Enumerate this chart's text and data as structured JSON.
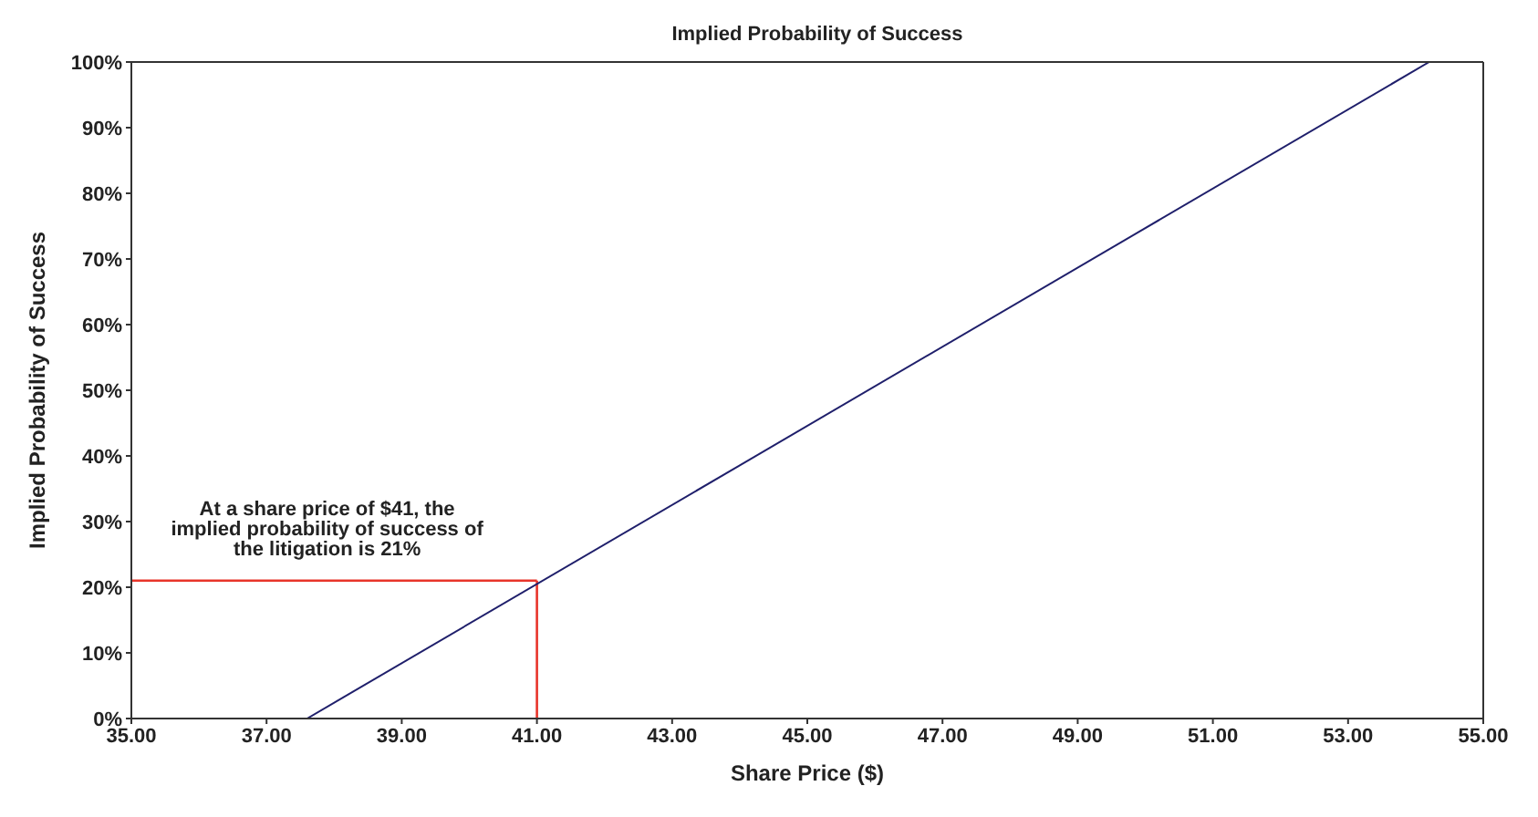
{
  "chart_data": {
    "type": "line",
    "title": "Implied Probability of Success",
    "xlabel": "Share Price ($)",
    "ylabel": "Implied Probability of Success",
    "series": [
      {
        "color": "#1f1f6b",
        "x": [
          37.6,
          54.2
        ],
        "values": [
          0,
          100
        ]
      }
    ],
    "xlim": [
      35,
      55
    ],
    "xticks": [
      {
        "value": 35,
        "label": "35.00"
      },
      {
        "value": 37,
        "label": "37.00"
      },
      {
        "value": 39,
        "label": "39.00"
      },
      {
        "value": 41,
        "label": "41.00"
      },
      {
        "value": 43,
        "label": "43.00"
      },
      {
        "value": 45,
        "label": "45.00"
      },
      {
        "value": 47,
        "label": "47.00"
      },
      {
        "value": 49,
        "label": "49.00"
      },
      {
        "value": 51,
        "label": "51.00"
      },
      {
        "value": 53,
        "label": "53.00"
      },
      {
        "value": 55,
        "label": "55.00"
      }
    ],
    "ylim": [
      0,
      100
    ],
    "yticks": [
      {
        "value": 0,
        "label": "0%"
      },
      {
        "value": 10,
        "label": "10%"
      },
      {
        "value": 20,
        "label": "20%"
      },
      {
        "value": 30,
        "label": "30%"
      },
      {
        "value": 40,
        "label": "40%"
      },
      {
        "value": 50,
        "label": "50%"
      },
      {
        "value": 60,
        "label": "60%"
      },
      {
        "value": 70,
        "label": "70%"
      },
      {
        "value": 80,
        "label": "80%"
      },
      {
        "value": 90,
        "label": "90%"
      },
      {
        "value": 100,
        "label": "100%"
      }
    ],
    "ref_lines": [
      {
        "axis": "y",
        "value": 21,
        "color": "#e8342a"
      },
      {
        "axis": "x",
        "value": 41,
        "color": "#e8342a"
      }
    ],
    "annotations": [
      {
        "text": "At a share price of $41, the implied probability of success of the litigation is 21%",
        "x": 41,
        "y": 21
      }
    ],
    "marker": "none",
    "line_style": "solid"
  }
}
